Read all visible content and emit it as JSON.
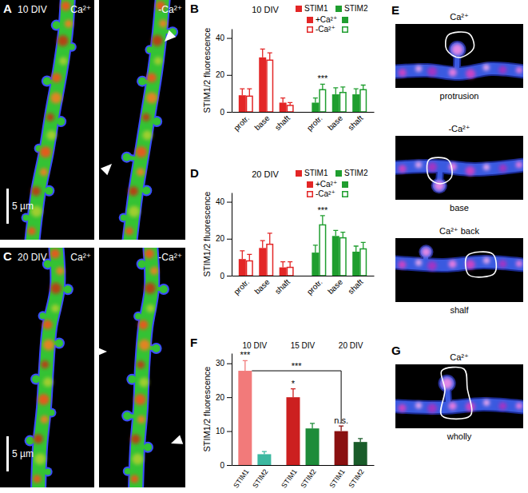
{
  "chart_data": [
    {
      "type": "bar",
      "panel_label": "B",
      "title": "10 DIV",
      "y_label": "STIM1/2 fluorescence",
      "categories": [
        "protr.",
        "base",
        "shaft",
        "protr.",
        "base",
        "shaft"
      ],
      "colors": [
        "#e32626",
        "#e32626",
        "#e32626",
        "#1f9e2f",
        "#1f9e2f",
        "#1f9e2f"
      ],
      "legend_groups": [
        {
          "name": "STIM1",
          "color": "#e32626"
        },
        {
          "name": "STIM2",
          "color": "#1f9e2f"
        }
      ],
      "series": [
        {
          "name": "+Ca²⁺",
          "marker": "filled",
          "values": [
            9,
            29.5,
            5,
            5,
            9.5,
            9.5
          ],
          "errors": [
            3.5,
            4.5,
            2.5,
            2.5,
            3.5,
            3
          ]
        },
        {
          "name": "-Ca²⁺",
          "marker": "open",
          "values": [
            8.5,
            28,
            3.5,
            12,
            10.5,
            12
          ],
          "errors": [
            4,
            4,
            1.5,
            3,
            3,
            2.5
          ]
        }
      ],
      "annotations": [
        {
          "text": "***",
          "category": 3,
          "series": 1
        }
      ],
      "legend": "upper right",
      "ylim": [
        0,
        45
      ],
      "yticks": [
        0,
        20,
        40
      ]
    },
    {
      "type": "bar",
      "panel_label": "D",
      "title": "20 DIV",
      "y_label": "STIM1/2 fluorescence",
      "categories": [
        "protr.",
        "base",
        "shaft",
        "protr.",
        "base",
        "shaft"
      ],
      "colors": [
        "#e32626",
        "#e32626",
        "#e32626",
        "#1f9e2f",
        "#1f9e2f",
        "#1f9e2f"
      ],
      "legend_groups": [
        {
          "name": "STIM1",
          "color": "#e32626"
        },
        {
          "name": "STIM2",
          "color": "#1f9e2f"
        }
      ],
      "series": [
        {
          "name": "+Ca²⁺",
          "marker": "filled",
          "values": [
            9,
            15,
            4.5,
            12.5,
            21.5,
            13
          ],
          "errors": [
            4.5,
            4,
            3,
            4,
            3,
            3
          ]
        },
        {
          "name": "-Ca²⁺",
          "marker": "open",
          "values": [
            8,
            17,
            4.5,
            27.5,
            20.5,
            14.5
          ],
          "errors": [
            3.5,
            6,
            3,
            5,
            3,
            3.5
          ]
        }
      ],
      "annotations": [
        {
          "text": "***",
          "category": 3,
          "series": 1
        }
      ],
      "legend": "upper right",
      "ylim": [
        0,
        45
      ],
      "yticks": [
        0,
        20,
        40
      ]
    },
    {
      "type": "bar",
      "panel_label": "F",
      "y_label": "STIM1/2 fluorescence",
      "categories": [
        "STIM1",
        "STIM2",
        "STIM1",
        "STIM2",
        "STIM1",
        "STIM2"
      ],
      "colors": [
        "#f27a7a",
        "#3cb8a0",
        "#cc2020",
        "#1e8c3a",
        "#8a1010",
        "#1a5c2a"
      ],
      "group_labels": [
        "10 DIV",
        "15 DIV",
        "20 DIV"
      ],
      "values": [
        27.8,
        3.2,
        20,
        10.8,
        10,
        6.8
      ],
      "errors": [
        3,
        0.8,
        2.5,
        1.5,
        1.5,
        1
      ],
      "annotations": [
        {
          "text": "***",
          "category": 0
        },
        {
          "text": "*",
          "category": 2
        },
        {
          "text": "n.s.",
          "category": 4
        },
        {
          "text": "***",
          "from": 0,
          "to": 4
        }
      ],
      "ylim": [
        0,
        33
      ],
      "yticks": [
        0,
        10,
        20,
        30
      ]
    }
  ],
  "images": [
    {
      "panel_label": "A",
      "title": "10 DIV",
      "frames": [
        "Ca²⁺",
        "-Ca²⁺"
      ],
      "scale_bar": "5 µm"
    },
    {
      "panel_label": "C",
      "title": "20 DIV",
      "frames": [
        "Ca²⁺",
        "-Ca²⁺"
      ],
      "scale_bar": "5 µm"
    },
    {
      "panel_label": "E",
      "frames": [
        {
          "condition": "Ca²⁺",
          "region": "protrusion"
        },
        {
          "condition": "-Ca²⁺",
          "region": "base"
        },
        {
          "condition": "Ca²⁺ back",
          "region": "shalf"
        }
      ]
    },
    {
      "panel_label": "G",
      "frames": [
        {
          "condition": "Ca²⁺",
          "region": "wholly"
        }
      ]
    }
  ]
}
